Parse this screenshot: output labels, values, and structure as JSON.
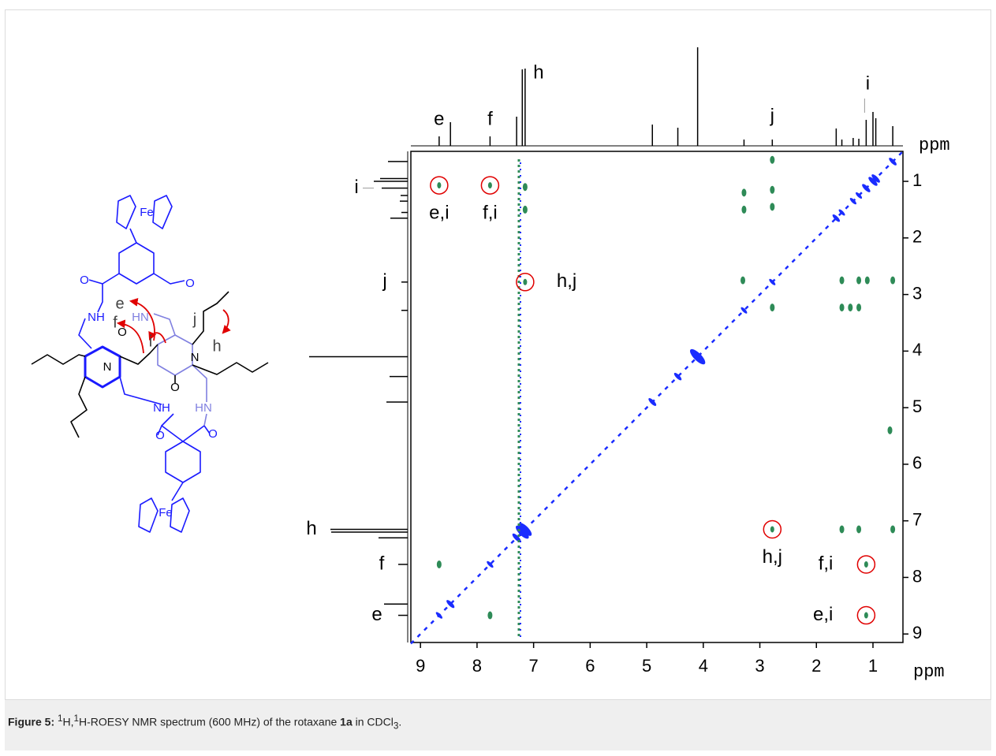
{
  "chart_data": {
    "type": "roesy",
    "xlim": [
      9.17,
      0.47
    ],
    "ylim": [
      0.47,
      9.15
    ],
    "xticks": [
      1,
      2,
      3,
      4,
      5,
      6,
      7,
      8,
      9
    ],
    "yticks": [
      1,
      2,
      3,
      4,
      5,
      6,
      7,
      8,
      9
    ],
    "x_label": "ppm",
    "y_label": "ppm",
    "projection": {
      "ppm": [
        8.67,
        8.47,
        7.77,
        7.3,
        7.2,
        7.15,
        4.9,
        4.45,
        4.1,
        3.28,
        2.78,
        1.65,
        1.55,
        1.35,
        1.25,
        1.12,
        1.0,
        0.95,
        0.65
      ],
      "intensity": [
        12,
        30,
        12,
        37,
        97,
        98,
        27,
        23,
        125,
        8,
        8,
        22,
        8,
        10,
        9,
        33,
        43,
        35,
        25
      ]
    },
    "peak_labels": [
      {
        "text": "e",
        "ppm": 8.67
      },
      {
        "text": "f",
        "ppm": 7.77
      },
      {
        "text": "h",
        "ppm": 7.15
      },
      {
        "text": "j",
        "ppm": 2.78
      },
      {
        "text": "i",
        "ppm": 1.12
      }
    ],
    "solvent_ppm": 7.26,
    "cross_peaks": {
      "x": [
        7.15,
        7.15,
        3.28,
        3.28,
        2.78,
        2.78,
        2.78,
        3.3,
        1.55,
        1.25,
        1.1,
        0.65,
        2.78,
        1.55,
        1.4,
        1.25,
        1.55,
        1.25,
        0.65,
        0.7,
        8.67,
        7.77
      ],
      "y": [
        1.1,
        1.5,
        1.2,
        1.5,
        0.62,
        1.15,
        1.45,
        2.75,
        2.75,
        2.75,
        2.75,
        2.75,
        3.23,
        3.23,
        3.23,
        3.23,
        7.15,
        7.15,
        7.15,
        5.4,
        7.77,
        8.67
      ]
    },
    "highlighted": [
      {
        "label": "e,i",
        "x": 8.67,
        "y": 1.07
      },
      {
        "label": "f,i",
        "x": 7.77,
        "y": 1.07
      },
      {
        "label": "h,j",
        "x": 7.15,
        "y": 2.78
      },
      {
        "label": "h,j",
        "x": 2.78,
        "y": 7.15
      },
      {
        "label": "f,i",
        "x": 1.12,
        "y": 7.77
      },
      {
        "label": "e,i",
        "x": 1.12,
        "y": 8.67
      }
    ]
  },
  "molecule": {
    "atoms": [
      "Fe",
      "O",
      "O",
      "NH",
      "HN",
      "O",
      "N",
      "N",
      "O",
      "NH",
      "HN",
      "O",
      "O",
      "Fe"
    ],
    "protons": [
      "e",
      "f",
      "i",
      "j",
      "h"
    ]
  },
  "caption": {
    "label": "Figure 5:",
    "parts": [
      "1",
      "H,",
      "1",
      "H-ROESY NMR spectrum (600 MHz) of the rotaxane ",
      "1a",
      " in CDCl",
      "3",
      "."
    ]
  }
}
